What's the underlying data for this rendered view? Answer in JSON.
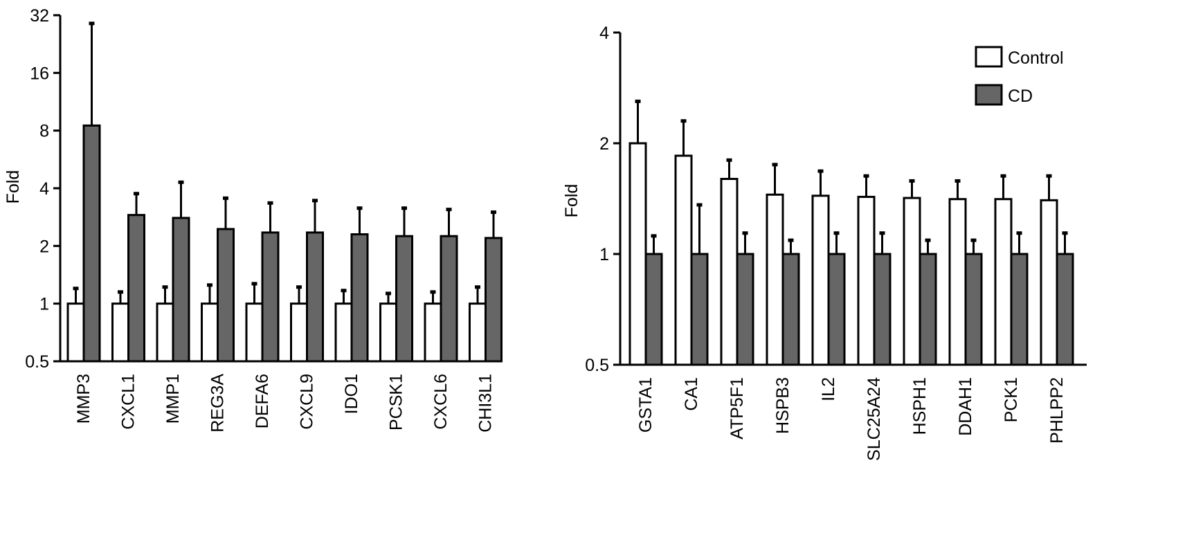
{
  "colors": {
    "control": "#ffffff",
    "cd": "#666666",
    "stroke": "#000000"
  },
  "legend": {
    "placement": "top-right",
    "items": [
      {
        "label": "Control",
        "color": "#ffffff"
      },
      {
        "label": "CD",
        "color": "#666666"
      }
    ]
  },
  "chart_data": [
    {
      "type": "bar",
      "scale": "log2",
      "ylabel": "Fold",
      "ylim": [
        0.5,
        32
      ],
      "yticks": [
        0.5,
        1,
        2,
        4,
        8,
        16,
        32
      ],
      "ytick_labels": [
        "0.5",
        "1",
        "2",
        "4",
        "8",
        "16",
        "32"
      ],
      "grid": false,
      "categories": [
        "MMP3",
        "CXCL1",
        "MMP1",
        "REG3A",
        "DEFA6",
        "CXCL9",
        "IDO1",
        "PCSK1",
        "CXCL6",
        "CHI3L1"
      ],
      "series": [
        {
          "name": "Control",
          "values": [
            1,
            1,
            1,
            1,
            1,
            1,
            1,
            1,
            1,
            1
          ],
          "error_top": [
            1.2,
            1.15,
            1.22,
            1.25,
            1.27,
            1.22,
            1.17,
            1.13,
            1.15,
            1.22
          ]
        },
        {
          "name": "CD",
          "values": [
            8.5,
            2.9,
            2.8,
            2.45,
            2.35,
            2.35,
            2.3,
            2.25,
            2.25,
            2.2
          ],
          "error_top": [
            29,
            3.75,
            4.3,
            3.55,
            3.35,
            3.45,
            3.15,
            3.15,
            3.1,
            3.0
          ]
        }
      ]
    },
    {
      "type": "bar",
      "scale": "log2",
      "ylabel": "Fold",
      "ylim": [
        0.5,
        4
      ],
      "yticks": [
        0.5,
        1,
        2,
        4
      ],
      "ytick_labels": [
        "0.5",
        "1",
        "2",
        "4"
      ],
      "grid": false,
      "categories": [
        "GSTA1",
        "CA1",
        "ATP5F1",
        "HSPB3",
        "IL2",
        "SLC25A24",
        "HSPH1",
        "DDAH1",
        "PCK1",
        "PHLPP2"
      ],
      "series": [
        {
          "name": "Control",
          "values": [
            2.0,
            1.85,
            1.6,
            1.45,
            1.44,
            1.43,
            1.42,
            1.41,
            1.41,
            1.4
          ],
          "error_top": [
            2.6,
            2.3,
            1.8,
            1.75,
            1.68,
            1.63,
            1.58,
            1.58,
            1.63,
            1.63
          ]
        },
        {
          "name": "CD",
          "values": [
            1,
            1,
            1,
            1,
            1,
            1,
            1,
            1,
            1,
            1
          ],
          "error_top": [
            1.12,
            1.36,
            1.14,
            1.09,
            1.14,
            1.14,
            1.09,
            1.09,
            1.14,
            1.14
          ]
        }
      ]
    }
  ]
}
